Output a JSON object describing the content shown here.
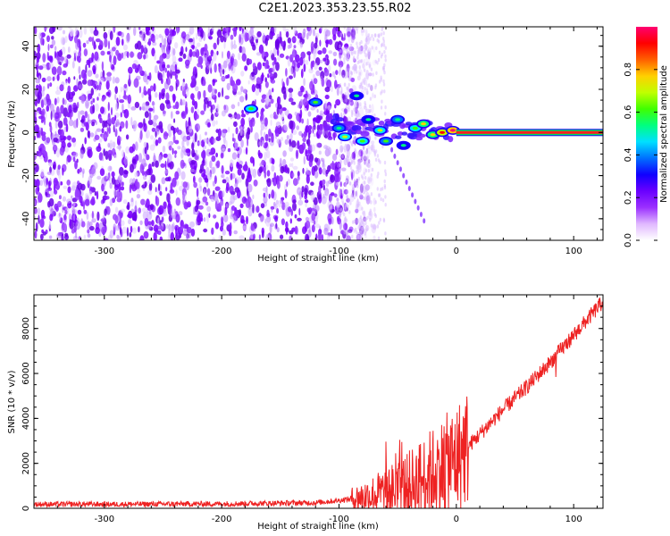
{
  "title": "C2E1.2023.353.23.55.R02",
  "chart_data": [
    {
      "type": "heatmap",
      "xlabel": "Height of straight line (km)",
      "ylabel": "Frequency (Hz)",
      "xlim": [
        -360,
        125
      ],
      "ylim": [
        -50,
        49
      ],
      "x_ticks": [
        -300,
        -200,
        -100,
        0,
        100
      ],
      "x_tick_labels": [
        "-300",
        "-200",
        "-100",
        "0",
        "100"
      ],
      "y_ticks": [
        -40,
        -20,
        0,
        20,
        40
      ],
      "y_tick_labels": [
        "-40",
        "-20",
        "0",
        "20",
        "40"
      ],
      "colorbar": {
        "label": "Normalized spectral amplitude",
        "ticks": [
          0.0,
          0.2,
          0.4,
          0.6,
          0.8
        ],
        "tick_labels": [
          "0.0",
          "0.2",
          "0.4",
          "0.6",
          "0.8"
        ],
        "colormap": [
          "#ffffff",
          "#e0b8ff",
          "#9b30ff",
          "#6a00ff",
          "#1000ff",
          "#0070ff",
          "#00e0ff",
          "#00ff80",
          "#40ff00",
          "#c0ff00",
          "#ffd000",
          "#ff6000",
          "#ff0000",
          "#ff0070"
        ]
      },
      "features": {
        "noise_region_x": [
          -360,
          -100
        ],
        "carrier_line": {
          "x_start": 0,
          "x_end": 125,
          "frequency": 0,
          "color": "#ff2020"
        },
        "blobs": [
          {
            "x": -175,
            "y": 11,
            "amp": 0.5
          },
          {
            "x": -120,
            "y": 14,
            "amp": 0.45
          },
          {
            "x": -100,
            "y": 2,
            "amp": 0.4
          },
          {
            "x": -95,
            "y": -2,
            "amp": 0.55
          },
          {
            "x": -85,
            "y": 17,
            "amp": 0.35
          },
          {
            "x": -80,
            "y": -4,
            "amp": 0.5
          },
          {
            "x": -75,
            "y": 6,
            "amp": 0.35
          },
          {
            "x": -65,
            "y": 1,
            "amp": 0.55
          },
          {
            "x": -60,
            "y": -4,
            "amp": 0.45
          },
          {
            "x": -50,
            "y": 6,
            "amp": 0.4
          },
          {
            "x": -45,
            "y": -6,
            "amp": 0.35
          },
          {
            "x": -35,
            "y": 2,
            "amp": 0.5
          },
          {
            "x": -28,
            "y": 4,
            "amp": 0.6
          },
          {
            "x": -20,
            "y": -1,
            "amp": 0.6
          },
          {
            "x": -12,
            "y": 0,
            "amp": 0.75
          },
          {
            "x": -3,
            "y": 1,
            "amp": 0.85
          }
        ]
      }
    },
    {
      "type": "line",
      "xlabel": "Height of straight line (km)",
      "ylabel": "SNR (10 * v/v)",
      "xlim": [
        -360,
        125
      ],
      "ylim": [
        0,
        9500
      ],
      "x_ticks": [
        -300,
        -200,
        -100,
        0,
        100
      ],
      "x_tick_labels": [
        "-300",
        "-200",
        "-100",
        "0",
        "100"
      ],
      "y_ticks": [
        0,
        2000,
        4000,
        6000,
        8000
      ],
      "y_tick_labels": [
        "0",
        "2000",
        "4000",
        "6000",
        "8000"
      ],
      "series": [
        {
          "color": "#ee2222",
          "x": [
            -360,
            -300,
            -200,
            -120,
            -100,
            -80,
            -60,
            -40,
            -20,
            0,
            20,
            40,
            60,
            80,
            100,
            125
          ],
          "y": [
            180,
            180,
            200,
            250,
            350,
            500,
            700,
            1000,
            1600,
            2200,
            3300,
            4400,
            5400,
            6500,
            7700,
            9200
          ]
        }
      ]
    }
  ]
}
